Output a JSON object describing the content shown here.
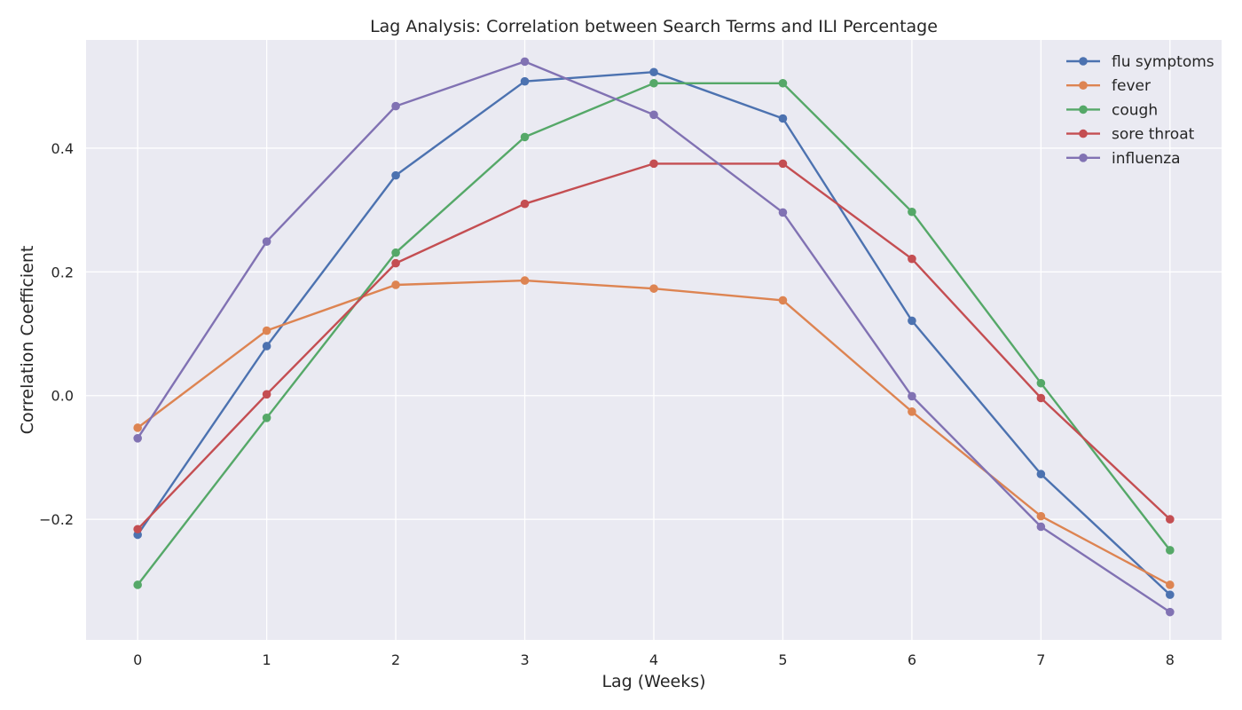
{
  "chart_data": {
    "type": "line",
    "title": "Lag Analysis: Correlation between Search Terms and ILI Percentage",
    "xlabel": "Lag (Weeks)",
    "ylabel": "Correlation Coefficient",
    "x": [
      0,
      1,
      2,
      3,
      4,
      5,
      6,
      7,
      8
    ],
    "x_ticks": [
      "0",
      "1",
      "2",
      "3",
      "4",
      "5",
      "6",
      "7",
      "8"
    ],
    "xlim": [
      -0.4,
      8.4
    ],
    "ylim": [
      -0.395,
      0.575
    ],
    "y_ticks": [
      -0.2,
      0.0,
      0.2,
      0.4
    ],
    "y_tick_labels": [
      "−0.2",
      "0.0",
      "0.2",
      "0.4"
    ],
    "grid": true,
    "legend_position": "top-right",
    "background_color": "#eaeaf2",
    "series": [
      {
        "name": "flu symptoms",
        "color": "#4c72b0",
        "values": [
          -0.225,
          0.08,
          0.356,
          0.508,
          0.523,
          0.448,
          0.121,
          -0.127,
          -0.322
        ]
      },
      {
        "name": "fever",
        "color": "#dd8452",
        "values": [
          -0.052,
          0.105,
          0.179,
          0.186,
          0.173,
          0.154,
          -0.026,
          -0.195,
          -0.306
        ]
      },
      {
        "name": "cough",
        "color": "#55a868",
        "values": [
          -0.306,
          -0.036,
          0.231,
          0.418,
          0.505,
          0.505,
          0.297,
          0.02,
          -0.25
        ]
      },
      {
        "name": "sore throat",
        "color": "#c44e52",
        "values": [
          -0.216,
          0.002,
          0.214,
          0.31,
          0.375,
          0.375,
          0.221,
          -0.004,
          -0.2
        ]
      },
      {
        "name": "influenza",
        "color": "#8172b3",
        "values": [
          -0.069,
          0.249,
          0.468,
          0.54,
          0.454,
          0.296,
          -0.001,
          -0.212,
          -0.35
        ]
      }
    ]
  }
}
